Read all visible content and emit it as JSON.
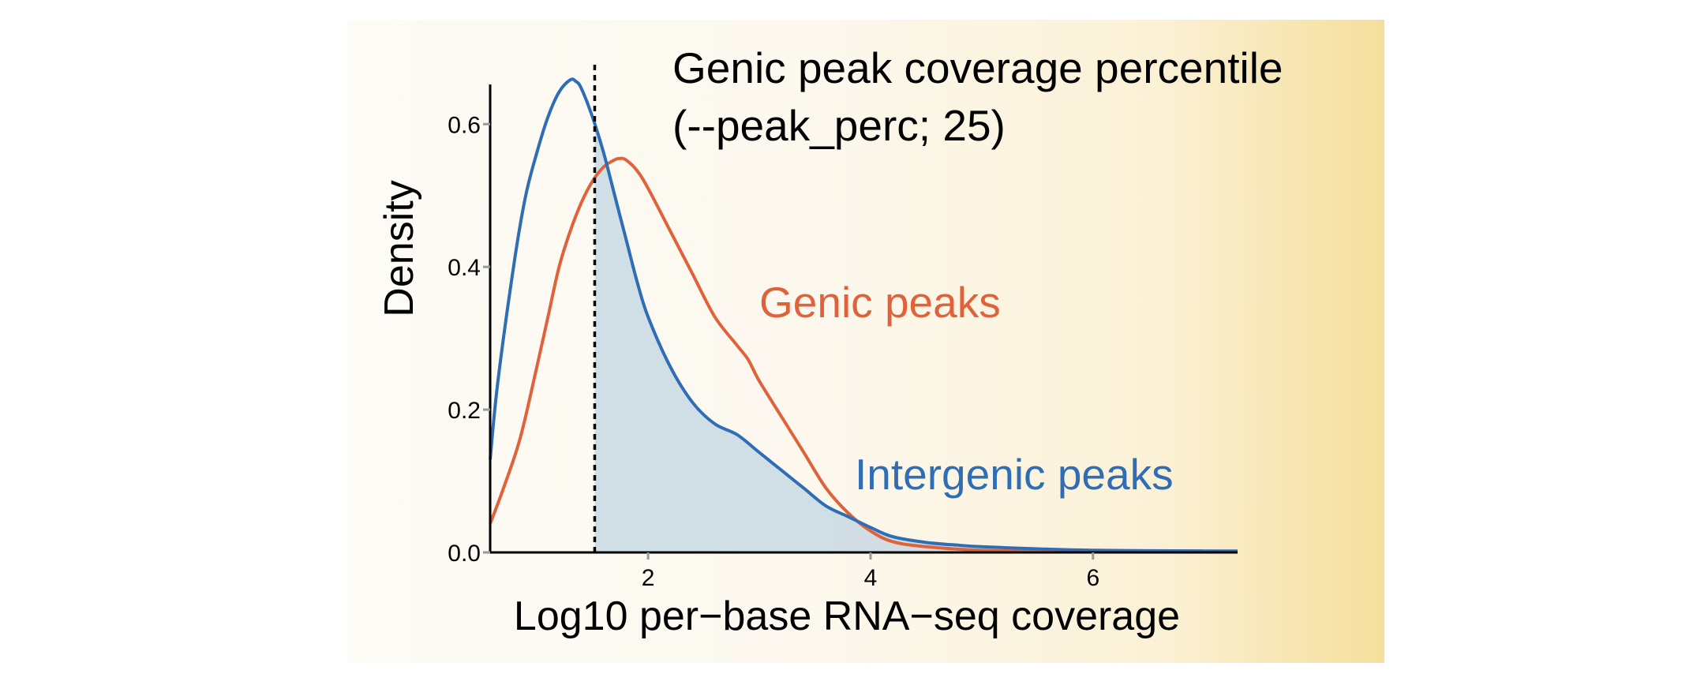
{
  "chart_data": {
    "type": "line",
    "title_lines": [
      "Genic peak coverage percentile",
      "(--peak_perc; 25)"
    ],
    "xlabel": "Log10 per−base RNA−seq coverage",
    "ylabel": "Density",
    "xlim": [
      0.58,
      7.3
    ],
    "ylim": [
      0,
      0.66
    ],
    "x_ticks": [
      2,
      4,
      6
    ],
    "y_ticks": [
      0.0,
      0.2,
      0.4,
      0.6
    ],
    "x_tick_labels": [
      "2",
      "4",
      "6"
    ],
    "y_tick_labels": [
      "0.0",
      "0.2",
      "0.4",
      "0.6"
    ],
    "grid": false,
    "threshold_x": 1.52,
    "series": [
      {
        "name": "Genic peaks",
        "color": "#e0623a",
        "x": [
          0.58,
          0.7,
          0.85,
          1.0,
          1.1,
          1.2,
          1.3,
          1.4,
          1.5,
          1.6,
          1.7,
          1.75,
          1.8,
          1.9,
          2.0,
          2.2,
          2.4,
          2.6,
          2.8,
          2.9,
          3.0,
          3.2,
          3.4,
          3.6,
          3.8,
          4.0,
          4.2,
          4.5,
          5.0,
          6.0,
          7.3
        ],
        "y": [
          0.04,
          0.09,
          0.16,
          0.26,
          0.33,
          0.4,
          0.45,
          0.49,
          0.52,
          0.54,
          0.55,
          0.552,
          0.55,
          0.535,
          0.51,
          0.45,
          0.39,
          0.33,
          0.29,
          0.27,
          0.24,
          0.19,
          0.14,
          0.09,
          0.055,
          0.03,
          0.015,
          0.008,
          0.003,
          0.001,
          0.001
        ]
      },
      {
        "name": "Intergenic peaks",
        "color": "#2f6db5",
        "x": [
          0.58,
          0.65,
          0.8,
          0.9,
          1.0,
          1.1,
          1.2,
          1.3,
          1.35,
          1.4,
          1.5,
          1.6,
          1.7,
          1.8,
          1.9,
          2.0,
          2.2,
          2.4,
          2.6,
          2.8,
          3.0,
          3.2,
          3.4,
          3.6,
          3.8,
          4.0,
          4.2,
          4.5,
          4.8,
          5.0,
          5.5,
          6.0,
          7.0,
          7.3
        ],
        "y": [
          0.13,
          0.24,
          0.41,
          0.5,
          0.56,
          0.61,
          0.645,
          0.662,
          0.66,
          0.65,
          0.61,
          0.56,
          0.5,
          0.44,
          0.38,
          0.33,
          0.26,
          0.21,
          0.18,
          0.165,
          0.14,
          0.115,
          0.09,
          0.065,
          0.05,
          0.035,
          0.022,
          0.014,
          0.01,
          0.008,
          0.005,
          0.003,
          0.002,
          0.002
        ]
      }
    ],
    "colors": {
      "shade": "#b9d0e0",
      "background_start": "#fdfbf6",
      "background_end": "#f5df9c"
    }
  }
}
